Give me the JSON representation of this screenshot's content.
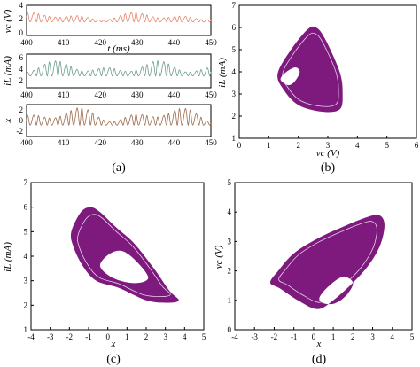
{
  "colors": {
    "ts1": "#e8846c",
    "ts2": "#6d9d8e",
    "ts3": "#9b6a4c",
    "attractor": "#7e1a7e"
  },
  "panels": {
    "a": {
      "caption": "(a)",
      "xlabel": "t (ms)",
      "xticks": [
        "400",
        "410",
        "420",
        "430",
        "440",
        "450"
      ],
      "ylabels": [
        "vc (V)",
        "iL (mA)",
        "x"
      ],
      "yticks_top": [
        "0",
        "2",
        "4"
      ],
      "yticks_mid": [
        "2",
        "4",
        "6"
      ],
      "yticks_bot": [
        "-2",
        "0",
        "2"
      ]
    },
    "b": {
      "caption": "(b)",
      "xlabel": "vc (V)",
      "ylabel": "iL (mA)",
      "xticks": [
        "0",
        "1",
        "2",
        "3",
        "4",
        "5",
        "6"
      ],
      "yticks": [
        "1",
        "2",
        "3",
        "4",
        "5",
        "6",
        "7"
      ]
    },
    "c": {
      "caption": "(c)",
      "xlabel": "x",
      "ylabel": "iL (mA)",
      "xticks": [
        "-4",
        "-3",
        "-2",
        "-1",
        "0",
        "1",
        "2",
        "3",
        "4",
        "5"
      ],
      "yticks": [
        "1",
        "2",
        "3",
        "4",
        "5",
        "6",
        "7"
      ]
    },
    "d": {
      "caption": "(d)",
      "xlabel": "x",
      "ylabel": "vc (V)",
      "xticks": [
        "-4",
        "-3",
        "-2",
        "-1",
        "0",
        "1",
        "2",
        "3",
        "4",
        "5"
      ],
      "yticks": [
        "0",
        "1",
        "2",
        "3",
        "4",
        "5"
      ]
    }
  },
  "chart_data": [
    {
      "type": "line",
      "panel": "a",
      "x_range": [
        400,
        450
      ],
      "series": [
        {
          "name": "vc",
          "ylim": [
            -0.5,
            4.5
          ],
          "amplitude": [
            1.2,
            3.4
          ]
        },
        {
          "name": "iL",
          "ylim": [
            1,
            7
          ],
          "amplitude": [
            2.2,
            5.8
          ]
        },
        {
          "name": "x",
          "ylim": [
            -2.5,
            3.5
          ],
          "amplitude": [
            -1.5,
            3.0
          ]
        }
      ]
    },
    {
      "type": "scatter",
      "panel": "b",
      "xlim": [
        0,
        6
      ],
      "ylim": [
        1,
        7
      ],
      "outer": [
        [
          1.3,
          3.9
        ],
        [
          1.7,
          4.9
        ],
        [
          2.3,
          5.9
        ],
        [
          2.6,
          6.0
        ],
        [
          2.9,
          5.5
        ],
        [
          3.4,
          4.0
        ],
        [
          3.5,
          3.0
        ],
        [
          3.4,
          2.3
        ],
        [
          2.8,
          2.2
        ],
        [
          2.0,
          2.5
        ],
        [
          1.5,
          3.2
        ]
      ],
      "hole": [
        [
          1.4,
          3.7
        ],
        [
          1.6,
          4.0
        ],
        [
          1.9,
          4.2
        ],
        [
          2.05,
          4.0
        ],
        [
          1.9,
          3.6
        ],
        [
          1.7,
          3.4
        ],
        [
          1.5,
          3.5
        ]
      ]
    },
    {
      "type": "scatter",
      "panel": "c",
      "xlim": [
        -4,
        5
      ],
      "ylim": [
        1,
        7
      ],
      "outer": [
        [
          -1.9,
          5.0
        ],
        [
          -1.4,
          5.8
        ],
        [
          -0.9,
          6.0
        ],
        [
          -0.4,
          5.8
        ],
        [
          0.4,
          5.2
        ],
        [
          1.4,
          4.5
        ],
        [
          2.4,
          3.5
        ],
        [
          3.2,
          2.6
        ],
        [
          3.7,
          2.2
        ],
        [
          3.1,
          2.1
        ],
        [
          2.0,
          2.2
        ],
        [
          0.6,
          2.7
        ],
        [
          -0.6,
          3.0
        ],
        [
          -1.3,
          3.6
        ],
        [
          -1.8,
          4.4
        ]
      ],
      "hole": [
        [
          -0.4,
          3.6
        ],
        [
          0.1,
          4.1
        ],
        [
          0.8,
          4.2
        ],
        [
          1.6,
          3.7
        ],
        [
          2.1,
          3.1
        ],
        [
          1.4,
          2.9
        ],
        [
          0.3,
          3.1
        ]
      ]
    },
    {
      "type": "scatter",
      "panel": "d",
      "xlim": [
        -4,
        5
      ],
      "ylim": [
        0,
        5
      ],
      "outer": [
        [
          -2.2,
          1.6
        ],
        [
          -1.8,
          2.0
        ],
        [
          -1.0,
          2.6
        ],
        [
          0.2,
          3.1
        ],
        [
          1.5,
          3.5
        ],
        [
          2.6,
          3.8
        ],
        [
          3.3,
          3.9
        ],
        [
          3.6,
          3.6
        ],
        [
          3.4,
          2.9
        ],
        [
          2.8,
          2.2
        ],
        [
          2.0,
          1.6
        ],
        [
          1.0,
          1.0
        ],
        [
          0.2,
          0.7
        ],
        [
          -0.8,
          1.0
        ],
        [
          -1.7,
          1.4
        ]
      ],
      "hole": [
        [
          0.3,
          1.1
        ],
        [
          0.8,
          1.5
        ],
        [
          1.5,
          1.8
        ],
        [
          2.0,
          1.6
        ],
        [
          1.7,
          1.2
        ],
        [
          1.1,
          0.9
        ],
        [
          0.5,
          0.9
        ]
      ]
    }
  ]
}
